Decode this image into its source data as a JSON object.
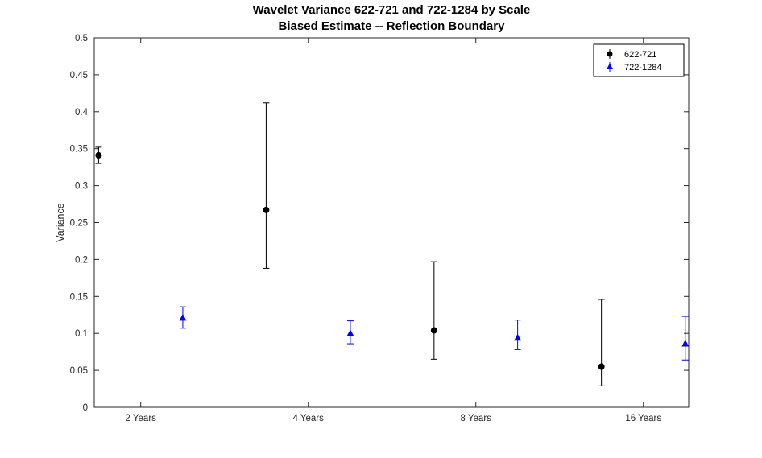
{
  "title": {
    "line1": "Wavelet Variance 622-721 and 722-1284 by Scale",
    "line2": "Biased Estimate -- Reflection Boundary"
  },
  "chart_data": {
    "type": "scatter",
    "subtype": "errorbar",
    "title": "Wavelet Variance 622-721 and 722-1284 by Scale",
    "subtitle": "Biased Estimate -- Reflection Boundary",
    "xlabel": "",
    "ylabel": "Variance",
    "x_scale": "log2",
    "xlim_years": [
      1.65,
      19.3
    ],
    "ylim": [
      0,
      0.5
    ],
    "yticks": [
      0,
      0.05,
      0.1,
      0.15,
      0.2,
      0.25,
      0.3,
      0.35,
      0.4,
      0.45,
      0.5
    ],
    "ytick_labels": [
      "0",
      "0.05",
      "0.1",
      "0.15",
      "0.2",
      "0.25",
      "0.3",
      "0.35",
      "0.4",
      "0.45",
      "0.5"
    ],
    "xticks_years": [
      2,
      4,
      8,
      16
    ],
    "xtick_labels": [
      "2 Years",
      "4 Years",
      "8 Years",
      "16 Years"
    ],
    "axis_color": "#262626",
    "grid": false,
    "legend_position": "top-right",
    "series": [
      {
        "name": "622-721",
        "marker": "circle",
        "color": "#000000",
        "points": [
          {
            "x": 1.68,
            "y": 0.341,
            "err_lo": 0.33,
            "err_hi": 0.352
          },
          {
            "x": 3.36,
            "y": 0.267,
            "err_lo": 0.188,
            "err_hi": 0.412
          },
          {
            "x": 6.73,
            "y": 0.104,
            "err_lo": 0.065,
            "err_hi": 0.197
          },
          {
            "x": 13.45,
            "y": 0.055,
            "err_lo": 0.029,
            "err_hi": 0.146
          }
        ]
      },
      {
        "name": "722-1284",
        "marker": "triangle",
        "color": "#0000ff",
        "points": [
          {
            "x": 2.38,
            "y": 0.121,
            "err_lo": 0.107,
            "err_hi": 0.136
          },
          {
            "x": 4.76,
            "y": 0.1,
            "err_lo": 0.086,
            "err_hi": 0.117
          },
          {
            "x": 9.51,
            "y": 0.094,
            "err_lo": 0.078,
            "err_hi": 0.118
          },
          {
            "x": 19.03,
            "y": 0.086,
            "err_lo": 0.064,
            "err_hi": 0.123
          }
        ]
      }
    ]
  }
}
